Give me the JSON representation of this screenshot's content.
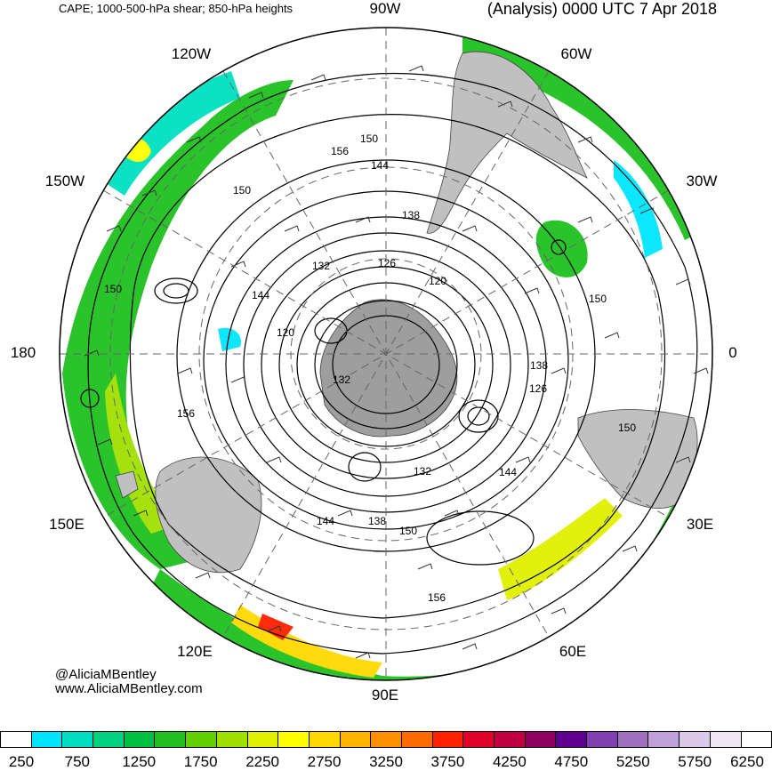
{
  "header": {
    "left_text": "CAPE; 1000-500-hPa shear; 850-hPa heights",
    "right_text": "(Analysis) 0000 UTC 7 Apr 2018"
  },
  "longitude_labels": {
    "top": "90W",
    "top_left": "120W",
    "top_right": "60W",
    "upper_left": "150W",
    "upper_right": "30W",
    "left": "180",
    "right": "0",
    "lower_left": "150E",
    "lower_right": "30E",
    "bottom_left": "120E",
    "bottom_right": "60E",
    "bottom": "90E"
  },
  "contour_labels": [
    "150",
    "156",
    "144",
    "138",
    "126",
    "120",
    "132",
    "150",
    "144",
    "120",
    "150",
    "156",
    "138",
    "126",
    "150",
    "132",
    "144",
    "138",
    "150",
    "144",
    "156",
    "150",
    "132"
  ],
  "credits": {
    "handle": "@AliciaMBentley",
    "website": "www.AliciaMBentley.com"
  },
  "colorbar": {
    "colors": [
      "#ffffff",
      "#00e5ff",
      "#00e0c0",
      "#00d080",
      "#00c040",
      "#20c020",
      "#60d000",
      "#a0e000",
      "#e0f000",
      "#ffff00",
      "#ffd800",
      "#ffb400",
      "#ff9000",
      "#ff6a00",
      "#ff2000",
      "#e0002a",
      "#c00040",
      "#900060",
      "#600090",
      "#8040b0",
      "#a070c0",
      "#c0a0d8",
      "#dcc8e8",
      "#f0e8f6",
      "#ffffff"
    ],
    "tick_labels": [
      "250",
      "750",
      "1250",
      "1750",
      "2250",
      "2750",
      "3250",
      "3750",
      "4250",
      "4750",
      "5250",
      "5750",
      "6250"
    ]
  },
  "map_colors": {
    "land": "#c0c0c0",
    "ocean": "#ffffff",
    "cape_low": "#00e5ff",
    "cape_mid": "#20c020",
    "cape_high": "#ffff00",
    "cape_peak": "#ff2000"
  }
}
